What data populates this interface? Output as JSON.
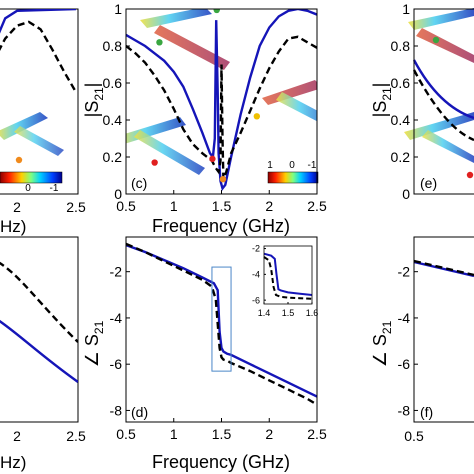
{
  "chart_data": [
    {
      "panel": "(c)",
      "type": "line",
      "xlabel": "Frequency (GHz)",
      "ylabel": "|S21|",
      "xlim": [
        0.5,
        2.5
      ],
      "ylim": [
        0,
        1
      ],
      "xticks": [
        "0.5",
        "1",
        "1.5",
        "2",
        "2.5"
      ],
      "yticks": [
        "0",
        "0.2",
        "0.4",
        "0.6",
        "0.8",
        "1"
      ],
      "series": [
        {
          "style": "solid",
          "color": "#1515b8",
          "x": [
            0.5,
            0.6,
            0.7,
            0.8,
            0.9,
            1.0,
            1.1,
            1.2,
            1.3,
            1.38,
            1.41,
            1.43,
            1.445,
            1.46,
            1.47,
            1.49,
            1.51,
            1.54,
            1.6,
            1.7,
            1.8,
            1.9,
            2.0,
            2.1,
            2.2,
            2.3,
            2.4,
            2.5
          ],
          "y": [
            0.86,
            0.83,
            0.8,
            0.76,
            0.72,
            0.66,
            0.58,
            0.46,
            0.33,
            0.22,
            0.2,
            0.3,
            0.94,
            0.55,
            0.22,
            0.07,
            0.03,
            0.05,
            0.2,
            0.43,
            0.63,
            0.8,
            0.9,
            0.96,
            0.99,
            1.0,
            0.99,
            0.97
          ]
        },
        {
          "style": "dashed",
          "color": "#000000",
          "x": [
            0.5,
            0.6,
            0.7,
            0.8,
            0.9,
            1.0,
            1.1,
            1.2,
            1.3,
            1.4,
            1.44,
            1.47,
            1.49,
            1.5,
            1.51,
            1.52,
            1.55,
            1.6,
            1.7,
            1.8,
            1.9,
            2.0,
            2.1,
            2.2,
            2.3,
            2.4,
            2.5
          ],
          "y": [
            0.8,
            0.76,
            0.71,
            0.64,
            0.56,
            0.46,
            0.35,
            0.27,
            0.22,
            0.18,
            0.14,
            0.12,
            0.18,
            0.7,
            0.3,
            0.08,
            0.12,
            0.22,
            0.33,
            0.45,
            0.57,
            0.68,
            0.77,
            0.84,
            0.85,
            0.82,
            0.79
          ]
        }
      ],
      "markers": [
        {
          "color": "#3aa641",
          "x": 1.45,
          "y": 0.995
        },
        {
          "color": "#3aa641",
          "x": 0.85,
          "y": 0.82
        },
        {
          "color": "#e02020",
          "x": 1.405,
          "y": 0.19
        },
        {
          "color": "#f08a1c",
          "x": 1.515,
          "y": 0.08
        },
        {
          "color": "#f0c000",
          "x": 1.87,
          "y": 0.42
        },
        {
          "color": "#e02020",
          "x": 0.8,
          "y": 0.17
        }
      ],
      "colorbar_ticks": [
        "1",
        "0",
        "-1"
      ]
    },
    {
      "panel": "(d)",
      "type": "line",
      "xlabel": "Frequency (GHz)",
      "ylabel": "∠ S21",
      "xlim": [
        0.5,
        2.5
      ],
      "ylim": [
        -8.5,
        -0.5
      ],
      "xticks": [
        "0.5",
        "1",
        "1.5",
        "2",
        "2.5"
      ],
      "yticks": [
        "-2",
        "-4",
        "-6",
        "-8"
      ],
      "series": [
        {
          "style": "solid",
          "color": "#1515b8",
          "x": [
            0.5,
            0.7,
            0.9,
            1.1,
            1.3,
            1.42,
            1.46,
            1.48,
            1.5,
            1.52,
            1.56,
            1.6,
            1.8,
            2.0,
            2.2,
            2.4,
            2.5
          ],
          "y": [
            -0.85,
            -1.15,
            -1.5,
            -1.85,
            -2.25,
            -2.5,
            -2.8,
            -4.6,
            -5.3,
            -5.45,
            -5.55,
            -5.6,
            -6.0,
            -6.4,
            -6.8,
            -7.2,
            -7.4
          ]
        },
        {
          "style": "dashed",
          "color": "#000000",
          "x": [
            0.5,
            0.7,
            0.9,
            1.1,
            1.3,
            1.4,
            1.44,
            1.48,
            1.5,
            1.52,
            1.56,
            1.6,
            1.8,
            2.0,
            2.2,
            2.4,
            2.5
          ],
          "y": [
            -0.8,
            -1.15,
            -1.55,
            -1.95,
            -2.35,
            -2.65,
            -3.2,
            -5.3,
            -5.7,
            -5.8,
            -5.85,
            -5.95,
            -6.3,
            -6.7,
            -7.1,
            -7.5,
            -7.75
          ]
        }
      ],
      "inset": {
        "xlim": [
          1.4,
          1.6
        ],
        "ylim": [
          -6.3,
          -1.8
        ],
        "xticks": [
          "1.4",
          "1.5",
          "1.6"
        ],
        "yticks": [
          "-2",
          "-4",
          "-6"
        ],
        "series": [
          {
            "style": "solid",
            "color": "#1515b8",
            "x": [
              1.4,
              1.43,
              1.445,
              1.452,
              1.46,
              1.47,
              1.5,
              1.55,
              1.6
            ],
            "y": [
              -2.4,
              -2.55,
              -2.8,
              -4.0,
              -5.15,
              -5.25,
              -5.4,
              -5.5,
              -5.6
            ]
          },
          {
            "style": "dashed",
            "color": "#000000",
            "x": [
              1.4,
              1.42,
              1.43,
              1.44,
              1.45,
              1.47,
              1.5,
              1.55,
              1.6
            ],
            "y": [
              -2.65,
              -2.9,
              -3.6,
              -5.0,
              -5.6,
              -5.75,
              -5.8,
              -5.85,
              -5.9
            ]
          }
        ]
      }
    },
    {
      "panel": "left (partial)",
      "type": "line",
      "xticks": [
        "2",
        "2.5"
      ],
      "colorbar_ticks": [
        "0",
        "-1"
      ],
      "series": [
        {
          "style": "solid",
          "color": "#1515b8",
          "x": [
            1.7,
            1.8,
            1.9,
            2.0,
            2.5
          ],
          "y": [
            0.5,
            0.8,
            0.95,
            0.99,
            1.0
          ]
        },
        {
          "style": "dashed",
          "color": "#000000",
          "x": [
            1.7,
            1.8,
            1.9,
            2.0,
            2.1,
            2.2,
            2.3,
            2.4,
            2.5
          ],
          "y": [
            0.55,
            0.72,
            0.84,
            0.91,
            0.93,
            0.89,
            0.78,
            0.66,
            0.55
          ]
        }
      ],
      "markers": [
        {
          "color": "#f08a1c",
          "x": 1.85,
          "y": 0.15
        }
      ]
    },
    {
      "panel": "(e)",
      "type": "line",
      "ylabel": "|S21|",
      "yticks": [
        "0",
        "0.2",
        "0.4",
        "0.6",
        "0.8",
        "1"
      ],
      "markers": [
        {
          "color": "#3aa641",
          "x": 0.6,
          "y": 0.82
        }
      ]
    },
    {
      "panel": "(f)",
      "type": "line",
      "ylabel": "∠ S21",
      "xticks": [
        "0.5"
      ],
      "yticks": [
        "-2",
        "-4",
        "-6",
        "-8"
      ]
    }
  ],
  "colors": {
    "solid_line": "#1515b8",
    "dashed_line": "#000000",
    "inset_box": "#4a86c8"
  },
  "labels": {
    "panel_c": "(c)",
    "panel_d": "(d)",
    "panel_e": "(e)",
    "panel_f": "(f)",
    "xlabel_top": "Frequency (GHz)",
    "xlabel_bottom": "Frequency (GHz)",
    "left_cut_top": "Hz)",
    "left_cut_bottom": "Hz)",
    "ylabel_c_main": "|S",
    "ylabel_c_sub": "21",
    "ylabel_c_end": "|",
    "ylabel_d_main": "∠ S",
    "ylabel_d_sub": "21",
    "ylabel_e_main": "|S",
    "ylabel_e_sub": "21",
    "ylabel_e_end": "|",
    "ylabel_f_main": "∠ S",
    "ylabel_f_sub": "21"
  }
}
